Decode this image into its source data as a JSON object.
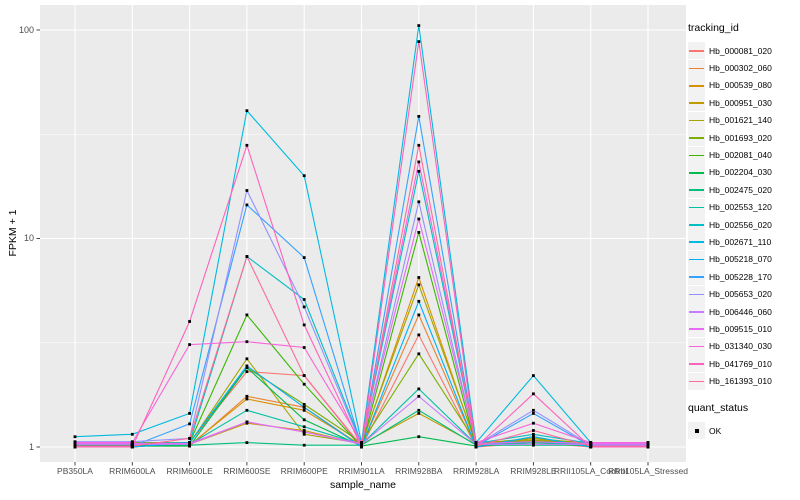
{
  "chart_data": {
    "type": "line",
    "title": "",
    "xlabel": "sample_name",
    "ylabel": "FPKM + 1",
    "y_scale": "log10",
    "ylim": [
      1,
      125
    ],
    "y_ticks": [
      1,
      10,
      100
    ],
    "y_minor": [
      3.162,
      31.62
    ],
    "grid": "on",
    "panel_bg": "#EBEBEB",
    "grid_color": "#FFFFFF",
    "point_color": "#000000",
    "point_shape": "square",
    "legend_position": "right",
    "samples": [
      "PB350LA",
      "RRIM600LA",
      "RRIM600LE",
      "RRIM600SE",
      "RRIM600PE",
      "RRIM901LA",
      "RRIM928BA",
      "RRIM928LA",
      "RRIM928LE",
      "RRII105LA_Control",
      "RRII105LA_Stressed"
    ],
    "series": [
      {
        "name": "Hb_000081_020",
        "color": "#F8766D",
        "values": [
          1.0,
          1.0,
          1.05,
          2.3,
          2.2,
          1.0,
          3.45,
          1.0,
          1.05,
          1.0,
          1.0
        ]
      },
      {
        "name": "Hb_000302_060",
        "color": "#EA8331",
        "values": [
          1.01,
          1.01,
          1.01,
          1.75,
          1.55,
          1.01,
          4.3,
          1.01,
          1.1,
          1.01,
          1.01
        ]
      },
      {
        "name": "Hb_000539_080",
        "color": "#D89000",
        "values": [
          1.02,
          1.02,
          1.02,
          1.7,
          1.5,
          1.02,
          6.5,
          1.02,
          1.1,
          1.02,
          1.02
        ]
      },
      {
        "name": "Hb_000951_030",
        "color": "#C09B00",
        "values": [
          1.03,
          1.03,
          1.03,
          1.3,
          1.2,
          1.03,
          1.45,
          1.03,
          1.08,
          1.03,
          1.03
        ]
      },
      {
        "name": "Hb_001621_140",
        "color": "#A3A500",
        "values": [
          1.04,
          1.04,
          1.04,
          2.65,
          1.15,
          1.04,
          6.0,
          1.04,
          1.1,
          1.04,
          1.04
        ]
      },
      {
        "name": "Hb_001693_020",
        "color": "#7CAE00",
        "values": [
          1.05,
          1.05,
          1.05,
          2.4,
          1.6,
          1.05,
          2.8,
          1.05,
          1.07,
          1.05,
          1.05
        ]
      },
      {
        "name": "Hb_002081_040",
        "color": "#39B600",
        "values": [
          1.0,
          1.0,
          1.05,
          4.3,
          2.0,
          1.0,
          10.7,
          1.0,
          1.12,
          1.0,
          1.0
        ]
      },
      {
        "name": "Hb_002204_030",
        "color": "#00BB4E",
        "values": [
          1.01,
          1.01,
          1.01,
          2.4,
          1.35,
          1.01,
          1.12,
          1.01,
          1.05,
          1.01,
          1.01
        ]
      },
      {
        "name": "Hb_002475_020",
        "color": "#00BF7D",
        "values": [
          1.02,
          1.02,
          1.02,
          1.05,
          1.02,
          1.02,
          1.5,
          1.02,
          1.02,
          1.02,
          1.02
        ]
      },
      {
        "name": "Hb_002553_120",
        "color": "#00C1A3",
        "values": [
          1.03,
          1.03,
          1.03,
          1.5,
          1.25,
          1.03,
          1.9,
          1.03,
          1.05,
          1.03,
          1.03
        ]
      },
      {
        "name": "Hb_002556_020",
        "color": "#00BFC4",
        "values": [
          1.04,
          1.04,
          1.05,
          8.2,
          5.1,
          1.04,
          21.0,
          1.04,
          1.15,
          1.04,
          1.04
        ]
      },
      {
        "name": "Hb_002671_110",
        "color": "#00BAE0",
        "values": [
          1.12,
          1.15,
          1.45,
          41.0,
          20.0,
          1.05,
          105.0,
          1.05,
          2.2,
          1.05,
          1.05
        ]
      },
      {
        "name": "Hb_005218_070",
        "color": "#00B0F6",
        "values": [
          1.0,
          1.0,
          1.05,
          2.45,
          1.55,
          1.0,
          5.0,
          1.0,
          1.12,
          1.0,
          1.0
        ]
      },
      {
        "name": "Hb_005228_170",
        "color": "#35A2FF",
        "values": [
          1.01,
          1.01,
          1.29,
          14.5,
          8.1,
          1.01,
          38.5,
          1.01,
          1.45,
          1.01,
          1.01
        ]
      },
      {
        "name": "Hb_005653_020",
        "color": "#9590FF",
        "values": [
          1.06,
          1.06,
          1.1,
          17.0,
          4.7,
          1.02,
          15.0,
          1.02,
          1.5,
          1.02,
          1.02
        ]
      },
      {
        "name": "Hb_006446_060",
        "color": "#C77CFF",
        "values": [
          1.03,
          1.03,
          1.03,
          1.32,
          1.18,
          1.03,
          1.75,
          1.03,
          1.03,
          1.03,
          1.03
        ]
      },
      {
        "name": "Hb_009515_010",
        "color": "#E76BF3",
        "values": [
          1.04,
          1.04,
          1.04,
          1.32,
          1.18,
          1.04,
          12.4,
          1.04,
          1.06,
          1.04,
          1.04
        ]
      },
      {
        "name": "Hb_031340_030",
        "color": "#FA62DB",
        "values": [
          1.05,
          1.05,
          3.1,
          3.2,
          3.0,
          1.05,
          23.3,
          1.05,
          1.3,
          1.05,
          1.05
        ]
      },
      {
        "name": "Hb_041769_010",
        "color": "#FF62BC",
        "values": [
          1.0,
          1.0,
          4.0,
          28.0,
          3.85,
          1.0,
          88.0,
          1.0,
          1.8,
          1.0,
          1.0
        ]
      },
      {
        "name": "Hb_161393_010",
        "color": "#FF6A98",
        "values": [
          1.01,
          1.01,
          1.1,
          8.2,
          2.2,
          1.01,
          28.0,
          1.01,
          1.2,
          1.01,
          1.01
        ]
      }
    ]
  },
  "legend": {
    "tracking_title": "tracking_id",
    "quant_title": "quant_status",
    "quant_items": [
      {
        "label": "OK"
      }
    ]
  }
}
